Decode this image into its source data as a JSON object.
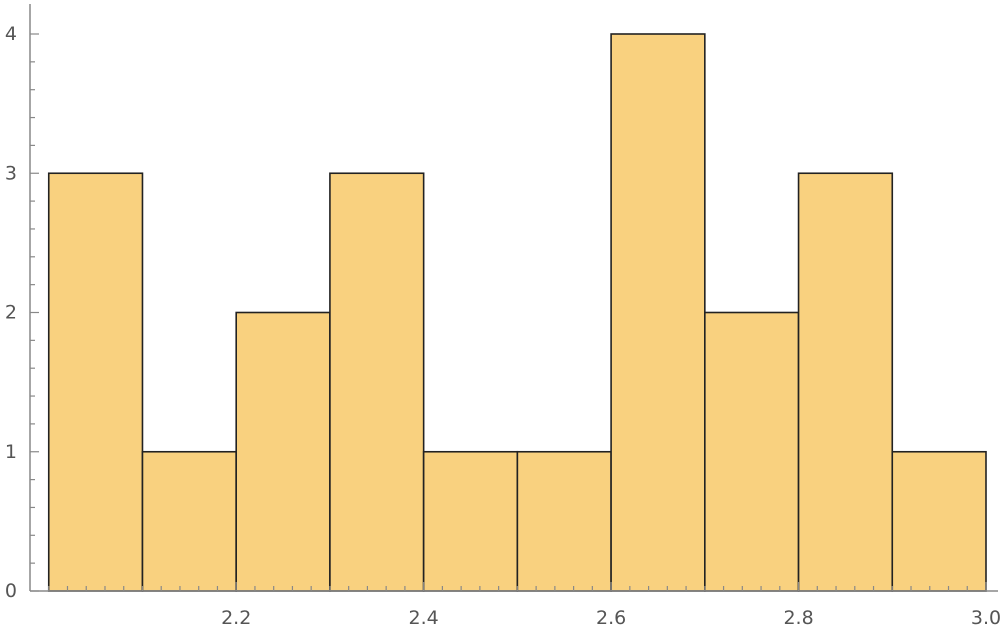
{
  "chart_data": {
    "type": "bar",
    "bins": [
      {
        "x0": 2.0,
        "x1": 2.1,
        "count": 3
      },
      {
        "x0": 2.1,
        "x1": 2.2,
        "count": 1
      },
      {
        "x0": 2.2,
        "x1": 2.3,
        "count": 2
      },
      {
        "x0": 2.3,
        "x1": 2.4,
        "count": 3
      },
      {
        "x0": 2.4,
        "x1": 2.5,
        "count": 1
      },
      {
        "x0": 2.5,
        "x1": 2.6,
        "count": 1
      },
      {
        "x0": 2.6,
        "x1": 2.7,
        "count": 4
      },
      {
        "x0": 2.7,
        "x1": 2.8,
        "count": 2
      },
      {
        "x0": 2.8,
        "x1": 2.9,
        "count": 3
      },
      {
        "x0": 2.9,
        "x1": 3.0,
        "count": 1
      }
    ],
    "xlim": [
      1.98,
      3.0
    ],
    "ylim": [
      0,
      4.2
    ],
    "x_ticks": [
      "2.2",
      "2.4",
      "2.6",
      "2.8",
      "3.0"
    ],
    "y_ticks": [
      "0",
      "1",
      "2",
      "3",
      "4"
    ],
    "title": "",
    "xlabel": "",
    "ylabel": "",
    "grid": false,
    "bar_color": "#f9d17f",
    "edge_color": "#222222"
  }
}
